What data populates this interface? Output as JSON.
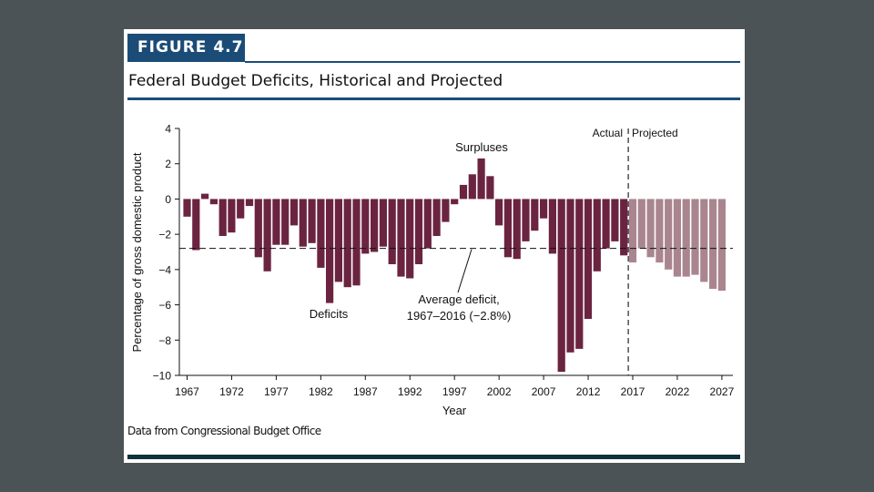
{
  "figure": {
    "label": "FIGURE 4.7",
    "title": "Federal Budget Deficits, Historical and Projected",
    "source": "Data from Congressional Budget Office"
  },
  "colors": {
    "actual_bar": "#6b2440",
    "projected_bar": "#a9868f",
    "header_blue": "#1b4c77",
    "footer_bar": "#10313f",
    "background": "#4b5357"
  },
  "chart_data": {
    "type": "bar",
    "title": "Federal Budget Deficits, Historical and Projected",
    "xlabel": "Year",
    "ylabel": "Percentage of gross domestic product",
    "ylim": [
      -10,
      4
    ],
    "xlim": [
      1967,
      2027
    ],
    "yticks": [
      4,
      2,
      0,
      -2,
      -4,
      -6,
      -8,
      -10
    ],
    "ytick_labels": [
      "4",
      "2",
      "0",
      "−2",
      "−4",
      "−6",
      "−8",
      "−10"
    ],
    "xticks": [
      1967,
      1972,
      1977,
      1982,
      1987,
      1992,
      1997,
      2002,
      2007,
      2012,
      2017,
      2022,
      2027
    ],
    "xtick_labels": [
      "1967",
      "1972",
      "1977",
      "1982",
      "1987",
      "1992",
      "1997",
      "2002",
      "2007",
      "2012",
      "2017",
      "2022",
      "2027"
    ],
    "grid": false,
    "series": [
      {
        "name": "Actual",
        "x": [
          1967,
          1968,
          1969,
          1970,
          1971,
          1972,
          1973,
          1974,
          1975,
          1976,
          1977,
          1978,
          1979,
          1980,
          1981,
          1982,
          1983,
          1984,
          1985,
          1986,
          1987,
          1988,
          1989,
          1990,
          1991,
          1992,
          1993,
          1994,
          1995,
          1996,
          1997,
          1998,
          1999,
          2000,
          2001,
          2002,
          2003,
          2004,
          2005,
          2006,
          2007,
          2008,
          2009,
          2010,
          2011,
          2012,
          2013,
          2014,
          2015,
          2016
        ],
        "values": [
          -1.0,
          -2.9,
          0.3,
          -0.3,
          -2.1,
          -1.9,
          -1.1,
          -0.4,
          -3.3,
          -4.1,
          -2.6,
          -2.6,
          -1.5,
          -2.7,
          -2.5,
          -3.9,
          -5.9,
          -4.7,
          -5.0,
          -4.9,
          -3.1,
          -3.0,
          -2.7,
          -3.7,
          -4.4,
          -4.5,
          -3.7,
          -2.8,
          -2.1,
          -1.3,
          -0.3,
          0.8,
          1.4,
          2.3,
          1.3,
          -1.5,
          -3.3,
          -3.4,
          -2.4,
          -1.8,
          -1.1,
          -3.1,
          -9.8,
          -8.7,
          -8.5,
          -6.8,
          -4.1,
          -2.8,
          -2.4,
          -3.2
        ]
      },
      {
        "name": "Projected",
        "x": [
          2017,
          2018,
          2019,
          2020,
          2021,
          2022,
          2023,
          2024,
          2025,
          2026,
          2027
        ],
        "values": [
          -3.6,
          -2.8,
          -3.3,
          -3.6,
          -4.0,
          -4.4,
          -4.4,
          -4.3,
          -4.7,
          -5.1,
          -5.2
        ]
      }
    ],
    "reference_line": {
      "value": -2.8,
      "label": "Average deficit, 1967–2016 (−2.8%)",
      "label_line1": "Average deficit,",
      "label_line2": "1967–2016 (−2.8%)"
    },
    "divider": {
      "between": [
        2016,
        2017
      ],
      "left_label": "Actual",
      "right_label": "Projected"
    },
    "annotations": [
      "Surpluses",
      "Deficits"
    ]
  }
}
